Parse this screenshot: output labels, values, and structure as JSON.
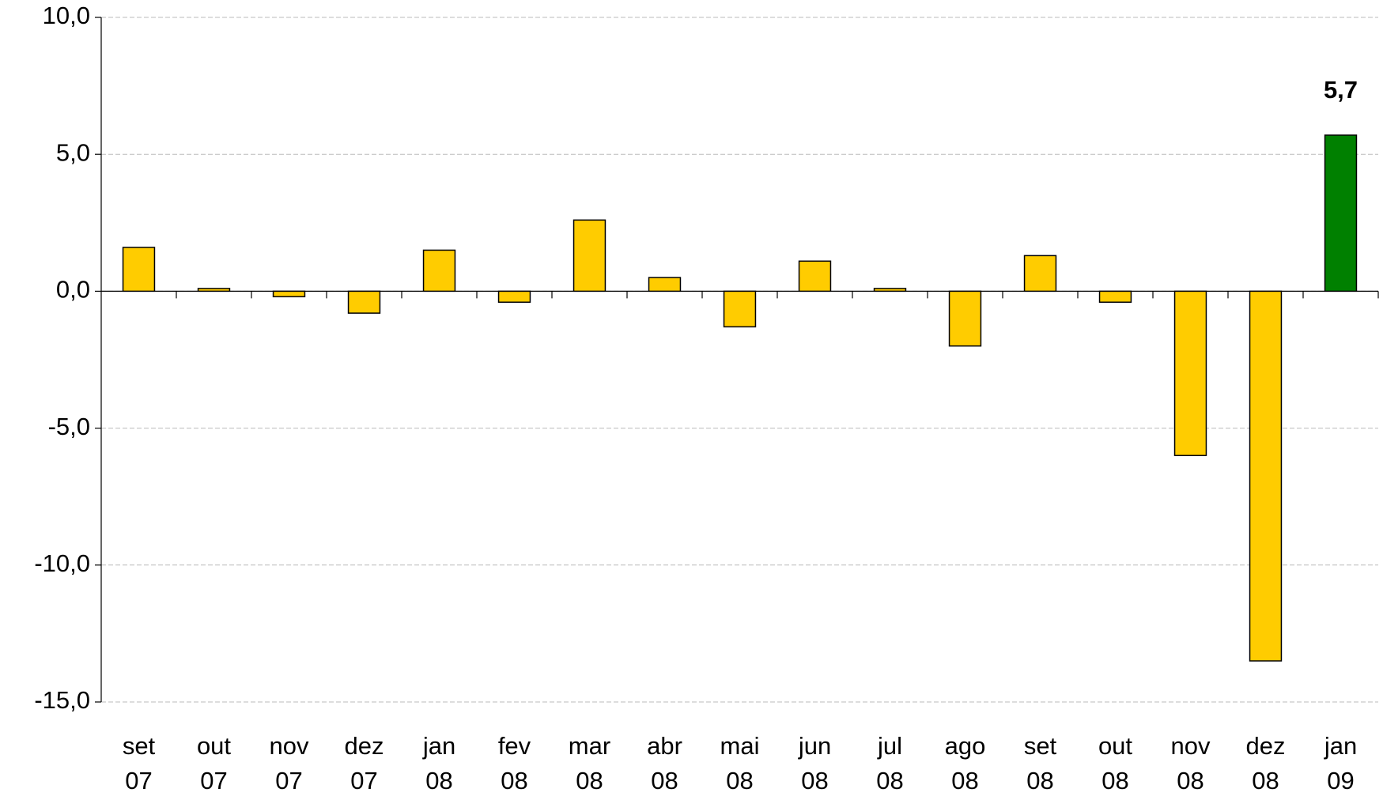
{
  "chart_data": {
    "type": "bar",
    "categories": [
      [
        "set",
        "07"
      ],
      [
        "out",
        "07"
      ],
      [
        "nov",
        "07"
      ],
      [
        "dez",
        "07"
      ],
      [
        "jan",
        "08"
      ],
      [
        "fev",
        "08"
      ],
      [
        "mar",
        "08"
      ],
      [
        "abr",
        "08"
      ],
      [
        "mai",
        "08"
      ],
      [
        "jun",
        "08"
      ],
      [
        "jul",
        "08"
      ],
      [
        "ago",
        "08"
      ],
      [
        "set",
        "08"
      ],
      [
        "out",
        "08"
      ],
      [
        "nov",
        "08"
      ],
      [
        "dez",
        "08"
      ],
      [
        "jan",
        "09"
      ]
    ],
    "values": [
      1.6,
      0.1,
      -0.2,
      -0.8,
      1.5,
      -0.4,
      2.6,
      0.5,
      -1.3,
      1.1,
      0.1,
      -2.0,
      1.3,
      -0.4,
      -6.0,
      -13.5,
      5.7
    ],
    "value_labels": [
      null,
      null,
      null,
      null,
      null,
      null,
      null,
      null,
      null,
      null,
      null,
      null,
      null,
      null,
      null,
      null,
      "5,7"
    ],
    "colors": [
      "#ffcc00",
      "#ffcc00",
      "#ffcc00",
      "#ffcc00",
      "#ffcc00",
      "#ffcc00",
      "#ffcc00",
      "#ffcc00",
      "#ffcc00",
      "#ffcc00",
      "#ffcc00",
      "#ffcc00",
      "#ffcc00",
      "#ffcc00",
      "#ffcc00",
      "#ffcc00",
      "#008000"
    ],
    "ylim": [
      -15,
      10
    ],
    "yticks": [
      {
        "value": 10,
        "label": "10,0"
      },
      {
        "value": 5,
        "label": "5,0"
      },
      {
        "value": 0,
        "label": "0,0"
      },
      {
        "value": -5,
        "label": "-5,0"
      },
      {
        "value": -10,
        "label": "-10,0"
      },
      {
        "value": -15,
        "label": "-15,0"
      }
    ],
    "grid": true
  }
}
